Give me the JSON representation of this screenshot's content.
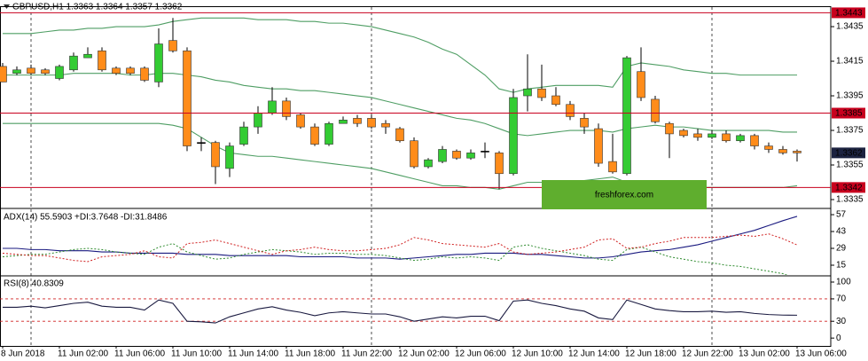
{
  "watermark": "freshforex.com",
  "chart_data": [
    {
      "type": "candlestick",
      "title": "GBPUSD,H1  1.3363 1.3364 1.3357 1.3362",
      "categories": [
        "8 Jun 2018",
        null,
        null,
        null,
        "11 Jun 02:00",
        null,
        null,
        null,
        "11 Jun 06:00",
        null,
        null,
        null,
        "11 Jun 10:00",
        null,
        null,
        null,
        "11 Jun 14:00",
        null,
        null,
        null,
        "11 Jun 18:00",
        null,
        null,
        null,
        "11 Jun 22:00",
        null,
        null,
        null,
        "12 Jun 02:00",
        null,
        null,
        null,
        "12 Jun 06:00",
        null,
        null,
        null,
        "12 Jun 10:00",
        null,
        null,
        null,
        "12 Jun 14:00",
        null,
        null,
        null,
        "12 Jun 18:00",
        null,
        null,
        null,
        "12 Jun 22:00",
        null,
        null,
        null,
        "13 Jun 02:00",
        null,
        null,
        null,
        "13 Jun 06:00"
      ],
      "open": [
        1.3412,
        1.3408,
        1.3411,
        1.341,
        1.3405,
        1.341,
        1.3417,
        1.3421,
        1.3411,
        1.3411,
        1.3411,
        1.3403,
        1.3427,
        1.3421,
        1.3368,
        1.3368,
        1.3353,
        1.3367,
        1.3377,
        1.3385,
        1.3392,
        1.3384,
        1.3377,
        1.3367,
        1.3379,
        1.3382,
        1.3382,
        1.3379,
        1.3376,
        1.3369,
        1.3354,
        1.3357,
        1.3363,
        1.3359,
        1.3363,
        1.3362,
        1.335,
        1.3395,
        1.3399,
        1.3395,
        1.339,
        1.3382,
        1.3376,
        1.3357,
        1.335,
        1.3409,
        1.3393,
        1.3379,
        1.3375,
        1.3373,
        1.3371,
        1.3373,
        1.3369,
        1.3372,
        1.3366,
        1.3364,
        1.3363
      ],
      "high": [
        1.3414,
        1.3412,
        1.3413,
        1.3411,
        1.3413,
        1.342,
        1.3423,
        1.3423,
        1.3412,
        1.3412,
        1.3412,
        1.3434,
        1.344,
        1.3423,
        1.3371,
        1.3369,
        1.3368,
        1.338,
        1.3389,
        1.34,
        1.3394,
        1.3385,
        1.3379,
        1.338,
        1.3383,
        1.3384,
        1.3384,
        1.3381,
        1.3377,
        1.3371,
        1.3359,
        1.3366,
        1.3364,
        1.3364,
        1.3368,
        1.3363,
        1.3399,
        1.3419,
        1.3413,
        1.34,
        1.3392,
        1.3385,
        1.3379,
        1.3373,
        1.3418,
        1.3423,
        1.3395,
        1.338,
        1.3376,
        1.3376,
        1.3375,
        1.3375,
        1.3373,
        1.3373,
        1.3368,
        1.3366,
        1.3364
      ],
      "low": [
        1.3403,
        1.3407,
        1.3407,
        1.3407,
        1.3404,
        1.3409,
        1.3417,
        1.3409,
        1.3407,
        1.3407,
        1.3403,
        1.34,
        1.342,
        1.3363,
        1.3363,
        1.3344,
        1.3348,
        1.3366,
        1.3373,
        1.3384,
        1.3381,
        1.3376,
        1.3366,
        1.3366,
        1.3379,
        1.3377,
        1.3376,
        1.3373,
        1.3368,
        1.3353,
        1.3353,
        1.3356,
        1.3358,
        1.3358,
        1.3359,
        1.3341,
        1.3349,
        1.3386,
        1.3392,
        1.3389,
        1.3381,
        1.3373,
        1.3354,
        1.335,
        1.3349,
        1.3392,
        1.3379,
        1.3359,
        1.3371,
        1.3369,
        1.337,
        1.3368,
        1.3368,
        1.3364,
        1.3362,
        1.3361,
        1.3357
      ],
      "close": [
        1.3403,
        1.341,
        1.3408,
        1.3408,
        1.3412,
        1.3418,
        1.3419,
        1.341,
        1.3408,
        1.3408,
        1.3404,
        1.3425,
        1.3421,
        1.3366,
        1.3368,
        1.3354,
        1.3366,
        1.3377,
        1.3385,
        1.3392,
        1.3383,
        1.3377,
        1.3367,
        1.3379,
        1.3381,
        1.3379,
        1.3377,
        1.3377,
        1.3369,
        1.3354,
        1.3358,
        1.3364,
        1.3359,
        1.3362,
        1.3363,
        1.335,
        1.3394,
        1.3399,
        1.3394,
        1.339,
        1.3383,
        1.3377,
        1.3356,
        1.3351,
        1.3417,
        1.3394,
        1.338,
        1.3373,
        1.3372,
        1.3371,
        1.3373,
        1.3369,
        1.3372,
        1.3366,
        1.3364,
        1.3362,
        1.3362
      ],
      "up_color": "#33cc33",
      "down_color": "#ff8c1a",
      "series": [
        {
          "color": "#4f9e64",
          "values": [
            1.3431,
            1.3431,
            1.3431,
            1.3432,
            1.3433,
            1.3433,
            1.3434,
            1.3434,
            1.3435,
            1.3435,
            1.3435,
            1.3436,
            1.3438,
            1.3439,
            1.344,
            1.344,
            1.344,
            1.344,
            1.3439,
            1.3439,
            1.3439,
            1.3438,
            1.3438,
            1.3437,
            1.3437,
            1.3436,
            1.3435,
            1.3433,
            1.3431,
            1.3429,
            1.3426,
            1.3422,
            1.3419,
            1.3413,
            1.3407,
            1.3399,
            1.3397,
            1.3399,
            1.34,
            1.3401,
            1.3401,
            1.3401,
            1.3401,
            1.34,
            1.3412,
            1.3414,
            1.3413,
            1.3412,
            1.341,
            1.3409,
            1.3408,
            1.3408,
            1.3407,
            1.3407,
            1.3407,
            1.3407,
            1.3407
          ]
        },
        {
          "color": "#4f9e64",
          "values": [
            1.3407,
            1.3407,
            1.3407,
            1.3407,
            1.3407,
            1.3408,
            1.3408,
            1.3408,
            1.3408,
            1.3407,
            1.3407,
            1.3408,
            1.3408,
            1.3407,
            1.3406,
            1.3404,
            1.3403,
            1.3401,
            1.34,
            1.3399,
            1.3399,
            1.3398,
            1.3398,
            1.3397,
            1.3396,
            1.3395,
            1.3394,
            1.3392,
            1.339,
            1.3388,
            1.3386,
            1.3384,
            1.3382,
            1.3381,
            1.3379,
            1.3376,
            1.3373,
            1.3372,
            1.3373,
            1.3374,
            1.3375,
            1.3375,
            1.3375,
            1.3374,
            1.3376,
            1.3377,
            1.3378,
            1.3377,
            1.3377,
            1.3376,
            1.3375,
            1.3375,
            1.3375,
            1.3375,
            1.3375,
            1.3374,
            1.3374
          ]
        },
        {
          "color": "#4f9e64",
          "values": [
            1.3379,
            1.3379,
            1.3379,
            1.3379,
            1.3379,
            1.3379,
            1.3379,
            1.3379,
            1.3379,
            1.3379,
            1.3379,
            1.3379,
            1.3378,
            1.3376,
            1.3371,
            1.3366,
            1.3362,
            1.3361,
            1.336,
            1.336,
            1.3359,
            1.3358,
            1.3357,
            1.3356,
            1.3355,
            1.3354,
            1.3353,
            1.3351,
            1.3349,
            1.3347,
            1.3345,
            1.3343,
            1.3343,
            1.3342,
            1.3342,
            1.3341,
            1.3343,
            1.3345,
            1.3345,
            1.3345,
            1.3345,
            1.3346,
            1.3347,
            1.3348,
            1.3345,
            1.3344,
            1.3343,
            1.3342,
            1.3342,
            1.3342,
            1.3342,
            1.3342,
            1.3342,
            1.3342,
            1.3342,
            1.3342,
            1.3343
          ]
        }
      ],
      "levels": [
        1.3443,
        1.3385,
        1.3342
      ],
      "level_color": "#c8001e",
      "last_price": 1.3362,
      "last_color": "#1c2340",
      "ylim": [
        1.33309,
        1.34463
      ],
      "yticks": [
        1.3435,
        1.3415,
        1.3395,
        1.3375,
        1.3355,
        1.3335
      ]
    },
    {
      "type": "line",
      "title": "ADX(14) 55.5903 +DI:3.7648 -DI:31.8486",
      "series": [
        {
          "color": "#1a1a80",
          "dash": false,
          "values": [
            29,
            29,
            28,
            28,
            27,
            27,
            27,
            26,
            26,
            25,
            25,
            25,
            25,
            24,
            24,
            24,
            23,
            23,
            23,
            23,
            23,
            22,
            22,
            22,
            22,
            21,
            21,
            21,
            20,
            21,
            22,
            23,
            24,
            24,
            25,
            25,
            25,
            24,
            24,
            23,
            22,
            21,
            21,
            22,
            24,
            26,
            27,
            28,
            30,
            32,
            35,
            38,
            41,
            44,
            48,
            52,
            55.5903
          ]
        },
        {
          "color": "#2e8b2e",
          "dash": true,
          "values": [
            22,
            23,
            24,
            24,
            26,
            28,
            29,
            28,
            26,
            25,
            24,
            30,
            33,
            26,
            23,
            20,
            21,
            24,
            26,
            28,
            27,
            26,
            24,
            25,
            25,
            24,
            24,
            23,
            21,
            19,
            20,
            22,
            21,
            22,
            21,
            19,
            30,
            32,
            29,
            27,
            25,
            23,
            20,
            19,
            28,
            30,
            26,
            22,
            20,
            18,
            17,
            15,
            14,
            12,
            10,
            8,
            3.7648
          ]
        },
        {
          "color": "#d02020",
          "dash": true,
          "values": [
            25,
            24,
            23,
            23,
            21,
            19,
            18,
            22,
            23,
            24,
            27,
            22,
            21,
            33,
            34,
            36,
            33,
            30,
            27,
            24,
            27,
            28,
            30,
            28,
            27,
            27,
            28,
            29,
            32,
            38,
            36,
            33,
            32,
            31,
            30,
            33,
            26,
            24,
            25,
            26,
            28,
            30,
            36,
            37,
            29,
            30,
            33,
            35,
            38,
            38,
            38,
            39,
            40,
            39,
            41,
            37,
            31.8486
          ]
        }
      ],
      "ylim": [
        6.9,
        60.7
      ],
      "yticks": [
        57,
        43,
        29,
        15
      ]
    },
    {
      "type": "line",
      "title": "RSI(8) 40.8309",
      "series": [
        {
          "color": "#1a1a40",
          "dash": false,
          "values": [
            55,
            55,
            57,
            54,
            58,
            62,
            64,
            57,
            55,
            55,
            50,
            68,
            62,
            30,
            29,
            27,
            38,
            45,
            52,
            56,
            50,
            46,
            40,
            45,
            47,
            45,
            43,
            43,
            38,
            30,
            34,
            38,
            36,
            39,
            39,
            31,
            66,
            68,
            62,
            58,
            52,
            48,
            36,
            33,
            68,
            60,
            52,
            49,
            47,
            47,
            48,
            46,
            47,
            44,
            42,
            41,
            40.8309
          ]
        }
      ],
      "levels": [
        70,
        30
      ],
      "level_color": "#d02020",
      "ylim": [
        -14,
        109.5
      ],
      "yticks": [
        100,
        70,
        30,
        0
      ]
    }
  ]
}
